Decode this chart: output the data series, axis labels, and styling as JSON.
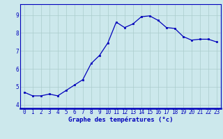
{
  "x": [
    0,
    1,
    2,
    3,
    4,
    5,
    6,
    7,
    8,
    9,
    10,
    11,
    12,
    13,
    14,
    15,
    16,
    17,
    18,
    19,
    20,
    21,
    22,
    23
  ],
  "y": [
    4.7,
    4.5,
    4.5,
    4.6,
    4.5,
    4.8,
    5.1,
    5.4,
    6.3,
    6.75,
    7.45,
    8.6,
    8.3,
    8.5,
    8.9,
    8.95,
    8.7,
    8.3,
    8.25,
    7.8,
    7.6,
    7.65,
    7.65,
    7.5
  ],
  "line_color": "#0000bb",
  "marker": "s",
  "marker_size": 2.0,
  "bg_color": "#cce8ec",
  "grid_color": "#aacccc",
  "xlabel": "Graphe des températures (°c)",
  "xlabel_color": "#0000bb",
  "xlabel_fontsize": 6.5,
  "tick_color": "#0000bb",
  "tick_fontsize": 5.5,
  "ylim": [
    3.8,
    9.6
  ],
  "yticks": [
    4,
    5,
    6,
    7,
    8,
    9
  ],
  "xlim": [
    -0.5,
    23.5
  ],
  "xticks": [
    0,
    1,
    2,
    3,
    4,
    5,
    6,
    7,
    8,
    9,
    10,
    11,
    12,
    13,
    14,
    15,
    16,
    17,
    18,
    19,
    20,
    21,
    22,
    23
  ]
}
